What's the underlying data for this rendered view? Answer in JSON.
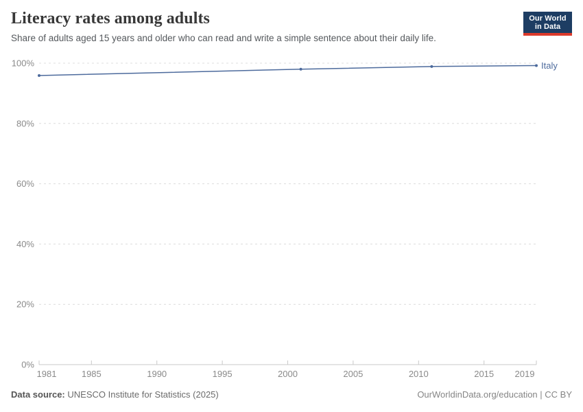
{
  "header": {
    "title": "Literacy rates among adults",
    "subtitle": "Share of adults aged 15 years and older who can read and write a simple sentence about their daily life.",
    "logo": {
      "line1": "Our World",
      "line2": "in Data"
    }
  },
  "chart_data": {
    "type": "line",
    "title": "Literacy rates among adults",
    "xlabel": "",
    "ylabel": "",
    "xlim": [
      1981,
      2019
    ],
    "ylim": [
      0,
      100
    ],
    "x_ticks": [
      1981,
      1985,
      1990,
      1995,
      2000,
      2005,
      2010,
      2015,
      2019
    ],
    "y_ticks": [
      0,
      20,
      40,
      60,
      80,
      100
    ],
    "y_tick_suffix": "%",
    "grid": "horizontal-dashed",
    "legend_position": "right-of-line-end",
    "series": [
      {
        "name": "Italy",
        "color": "#4c6a9c",
        "points": [
          {
            "x": 1981,
            "y": 95.9
          },
          {
            "x": 2001,
            "y": 98.0
          },
          {
            "x": 2011,
            "y": 98.9
          },
          {
            "x": 2019,
            "y": 99.2
          }
        ]
      }
    ]
  },
  "footer": {
    "source_label": "Data source:",
    "source_text": "UNESCO Institute for Statistics (2025)",
    "attribution": "OurWorldinData.org/education | CC BY"
  },
  "colors": {
    "series_blue": "#4c6a9c",
    "gridline": "#dcdcdc",
    "axis_line": "#c9c9c9",
    "tick_label": "#8a8a8a",
    "logo_navy": "#1d3d63",
    "logo_red": "#dc3a2b",
    "title_text": "#383838",
    "subtitle_text": "#54585c",
    "footer_text": "#6b6b6b",
    "attribution_text": "#858585"
  }
}
